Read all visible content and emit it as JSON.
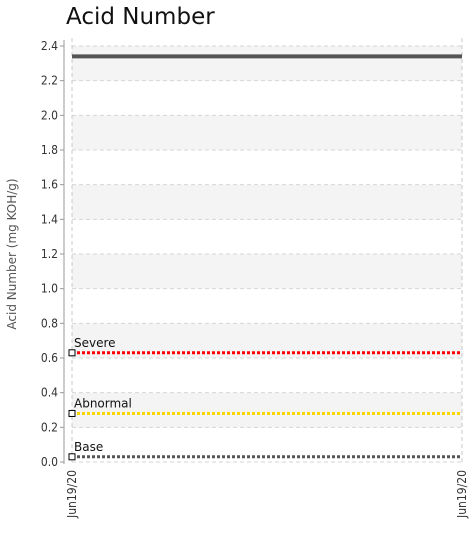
{
  "chart_data": {
    "type": "line",
    "title": "Acid Number",
    "ylabel": "Acid Number (mg KOH/g)",
    "xlabel": "",
    "ylim": [
      0,
      2.4
    ],
    "y_ticks": [
      0.0,
      0.2,
      0.4,
      0.6,
      0.8,
      1.0,
      1.2,
      1.4,
      1.6,
      1.8,
      2.0,
      2.2,
      2.4
    ],
    "y_tick_labels": [
      "0.0",
      "0.2",
      "0.4",
      "0.6",
      "0.8",
      "1.0",
      "1.2",
      "1.4",
      "1.6",
      "1.8",
      "2.0",
      "2.2",
      "2.4"
    ],
    "x_tick_labels": [
      "Jun19/20",
      "Jun19/20"
    ],
    "grid": true,
    "series": [
      {
        "values": [
          2.34,
          2.34
        ],
        "color": "#555555",
        "style": "solid"
      }
    ],
    "limits": [
      {
        "name": "Severe",
        "value": 0.63,
        "color": "#ff0000"
      },
      {
        "name": "Abnormal",
        "value": 0.28,
        "color": "#ffd700"
      },
      {
        "name": "Base",
        "value": 0.03,
        "color": "#555555"
      }
    ]
  }
}
